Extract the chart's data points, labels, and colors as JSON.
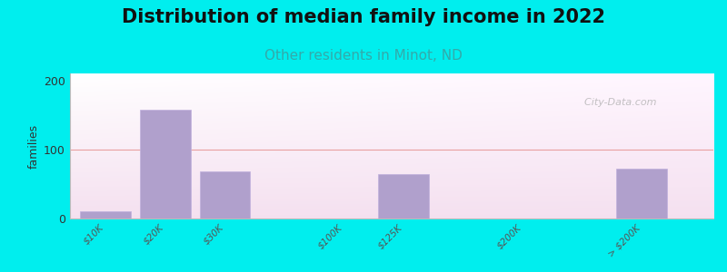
{
  "title": "Distribution of median family income in 2022",
  "subtitle": "Other residents in Minot, ND",
  "ylabel": "families",
  "background_color": "#00EEEE",
  "bar_color": "#b0a0cc",
  "bar_edge_color": "#c0b0dd",
  "categories": [
    "$10K",
    "$20K",
    "$30K",
    "$100K",
    "$125K",
    "$200K",
    "> $200K"
  ],
  "values": [
    10,
    158,
    68,
    0,
    65,
    0,
    72
  ],
  "ylim": [
    0,
    210
  ],
  "yticks": [
    0,
    100,
    200
  ],
  "grid_color": "#e8a0a0",
  "watermark": "  City-Data.com",
  "title_fontsize": 15,
  "subtitle_fontsize": 11,
  "subtitle_color": "#33aaaa",
  "bar_positions": [
    0,
    1,
    2,
    4,
    5,
    7,
    9
  ],
  "bar_width": 0.85,
  "xlim": [
    -0.6,
    10.2
  ]
}
